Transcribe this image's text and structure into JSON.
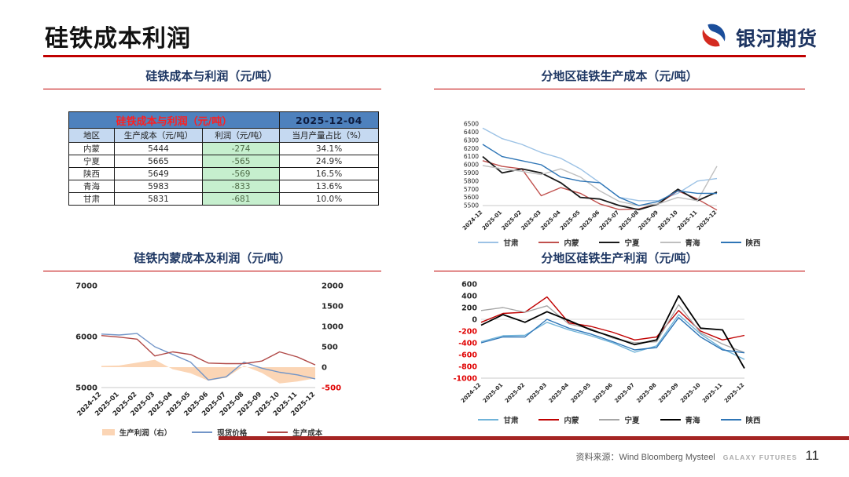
{
  "page": {
    "title": "硅铁成本利润",
    "logo_text": "银河期货",
    "source": "资料来源：Wind Bloomberg Mysteel",
    "brand": "GALAXY FUTURES",
    "page_number": "11",
    "accent_red": "#C00000"
  },
  "table_panel": {
    "title": "硅铁成本与利润（元/吨）",
    "header_title": "硅铁成本与利润（元/吨）",
    "date": "2025-12-04",
    "columns": [
      "地区",
      "生产成本（元/吨）",
      "利润（元/吨）",
      "当月产量占比（%）"
    ],
    "rows": [
      [
        "内蒙",
        "5444",
        "-274",
        "34.1%"
      ],
      [
        "宁夏",
        "5665",
        "-565",
        "24.9%"
      ],
      [
        "陕西",
        "5649",
        "-569",
        "16.5%"
      ],
      [
        "青海",
        "5983",
        "-833",
        "13.6%"
      ],
      [
        "甘肃",
        "5831",
        "-681",
        "10.0%"
      ]
    ]
  },
  "chart_data": [
    {
      "id": "regional-cost",
      "type": "line",
      "title": "分地区硅铁生产成本（元/吨）",
      "x": [
        "2024-12",
        "2025-01",
        "2025-02",
        "2025-03",
        "2025-04",
        "2025-05",
        "2025-06",
        "2025-07",
        "2025-08",
        "2025-09",
        "2025-10",
        "2025-11",
        "2025-12"
      ],
      "axes": {
        "left": {
          "min": 5500,
          "max": 6500,
          "ticks": [
            5500,
            5600,
            5700,
            5800,
            5900,
            6000,
            6100,
            6200,
            6300,
            6400,
            6500
          ]
        }
      },
      "legend_position": "bottom",
      "series": [
        {
          "name": "甘肃",
          "color": "#9CC2E5",
          "axis": "left",
          "values": [
            6450,
            6320,
            6250,
            6150,
            6080,
            5950,
            5780,
            5600,
            5560,
            5560,
            5650,
            5800,
            5831
          ]
        },
        {
          "name": "内蒙",
          "color": "#C0504D",
          "axis": "left",
          "values": [
            6050,
            5980,
            5950,
            5620,
            5720,
            5650,
            5520,
            5450,
            5460,
            5520,
            5680,
            5580,
            5444
          ]
        },
        {
          "name": "宁夏",
          "color": "#1A1A1A",
          "axis": "left",
          "values": [
            6100,
            5900,
            5950,
            5900,
            5780,
            5600,
            5580,
            5500,
            5450,
            5520,
            5700,
            5560,
            5665
          ]
        },
        {
          "name": "青海",
          "color": "#BFBFBF",
          "axis": "left",
          "values": [
            5990,
            5950,
            5920,
            5880,
            5950,
            5850,
            5680,
            5550,
            5500,
            5520,
            5600,
            5560,
            5983
          ]
        },
        {
          "name": "陕西",
          "color": "#2E75B6",
          "axis": "left",
          "values": [
            6250,
            6100,
            6050,
            6000,
            5850,
            5800,
            5780,
            5600,
            5500,
            5550,
            5680,
            5650,
            5649
          ]
        }
      ]
    },
    {
      "id": "neimeng-cost-profit",
      "type": "line+area",
      "title": "硅铁内蒙成本及利润（元/吨）",
      "x": [
        "2024-12",
        "2025-01",
        "2025-02",
        "2025-03",
        "2025-04",
        "2025-05",
        "2025-06",
        "2025-07",
        "2025-08",
        "2025-09",
        "2025-10",
        "2025-11",
        "2025-12"
      ],
      "axes": {
        "left": {
          "min": 5000,
          "max": 7000,
          "ticks": [
            5000,
            6000,
            7000
          ]
        },
        "right": {
          "min": -500,
          "max": 2000,
          "ticks": [
            -500,
            0,
            500,
            1000,
            1500,
            2000
          ],
          "negative_red": true
        }
      },
      "legend_position": "bottom",
      "series": [
        {
          "name": "生产利润（右）",
          "type": "area",
          "axis": "right",
          "color": "#FBD5B5",
          "values": [
            30,
            40,
            110,
            180,
            -50,
            -150,
            -330,
            -260,
            30,
            -140,
            -400,
            -350,
            -274
          ]
        },
        {
          "name": "现货价格",
          "type": "line",
          "axis": "left",
          "color": "#7295C8",
          "values": [
            6050,
            6030,
            6060,
            5800,
            5650,
            5500,
            5150,
            5210,
            5500,
            5380,
            5300,
            5250,
            5170
          ]
        },
        {
          "name": "生产成本",
          "type": "line",
          "axis": "left",
          "color": "#B04846",
          "values": [
            6020,
            5990,
            5950,
            5620,
            5700,
            5650,
            5480,
            5470,
            5470,
            5520,
            5700,
            5600,
            5444
          ]
        }
      ]
    },
    {
      "id": "regional-profit",
      "type": "line",
      "title": "分地区硅铁生产利润（元/吨）",
      "x": [
        "2024-12",
        "2025-01",
        "2025-02",
        "2025-03",
        "2025-04",
        "2025-05",
        "2025-06",
        "2025-07",
        "2025-08",
        "2025-09",
        "2025-10",
        "2025-11",
        "2025-12"
      ],
      "axes": {
        "left": {
          "min": -1000,
          "max": 600,
          "ticks": [
            -1000,
            -800,
            -600,
            -400,
            -200,
            0,
            200,
            400,
            600
          ],
          "negative_red": true
        }
      },
      "zero_line": "left",
      "legend_position": "bottom",
      "series": [
        {
          "name": "甘肃",
          "color": "#6FB3D9",
          "axis": "left",
          "values": [
            -380,
            -280,
            -270,
            -50,
            -180,
            -280,
            -400,
            -560,
            -450,
            80,
            -250,
            -500,
            -681
          ]
        },
        {
          "name": "内蒙",
          "color": "#C00000",
          "axis": "left",
          "values": [
            -50,
            100,
            120,
            380,
            -60,
            -120,
            -220,
            -350,
            -300,
            150,
            -200,
            -350,
            -274
          ]
        },
        {
          "name": "宁夏",
          "color": "#A6A6A6",
          "axis": "left",
          "values": [
            150,
            200,
            120,
            230,
            -80,
            -160,
            -320,
            -400,
            -380,
            250,
            -230,
            -420,
            -565
          ]
        },
        {
          "name": "青海",
          "color": "#000000",
          "axis": "left",
          "values": [
            -100,
            80,
            -50,
            130,
            -20,
            -180,
            -300,
            -430,
            -350,
            400,
            -150,
            -180,
            -833
          ]
        },
        {
          "name": "陕西",
          "color": "#2E75B6",
          "axis": "left",
          "values": [
            -400,
            -300,
            -300,
            0,
            -150,
            -250,
            -380,
            -520,
            -480,
            30,
            -300,
            -520,
            -569
          ]
        }
      ]
    }
  ]
}
